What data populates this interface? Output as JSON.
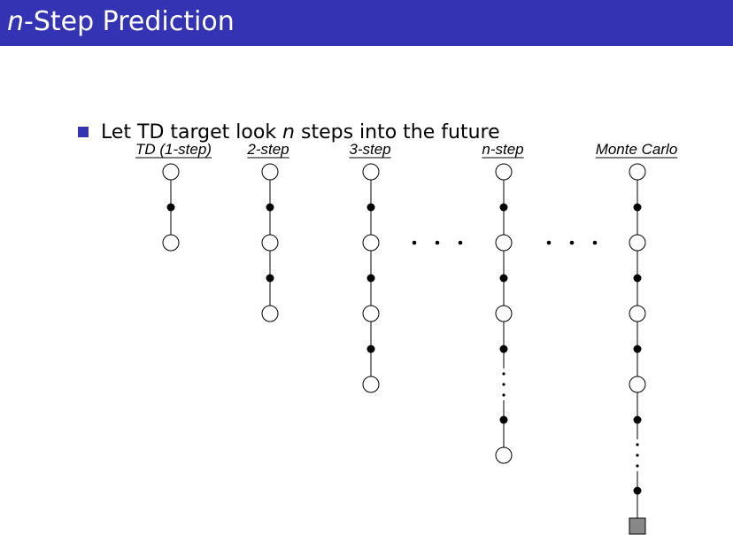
{
  "slide": {
    "title_italic": "n",
    "title_rest": "-Step Prediction",
    "bullet_pre": "Let TD target look ",
    "bullet_italic": "n",
    "bullet_post": " steps into the future"
  },
  "diagram": {
    "columns": [
      {
        "label": "TD (1-step)",
        "nodes": [
          "state",
          "action",
          "state"
        ]
      },
      {
        "label": "2-step",
        "nodes": [
          "state",
          "action",
          "state",
          "action",
          "state"
        ]
      },
      {
        "label": "3-step",
        "nodes": [
          "state",
          "action",
          "state",
          "action",
          "state",
          "action",
          "state"
        ]
      },
      {
        "label": "n-step",
        "nodes": [
          "state",
          "action",
          "state",
          "action",
          "state",
          "action",
          "ellipsis",
          "action",
          "state"
        ]
      },
      {
        "label": "Monte Carlo",
        "nodes": [
          "state",
          "action",
          "state",
          "action",
          "state",
          "action",
          "state",
          "action",
          "ellipsis",
          "action",
          "terminal"
        ]
      }
    ],
    "colors": {
      "title_bar": "#3333b3",
      "terminal_fill": "#888888"
    }
  }
}
